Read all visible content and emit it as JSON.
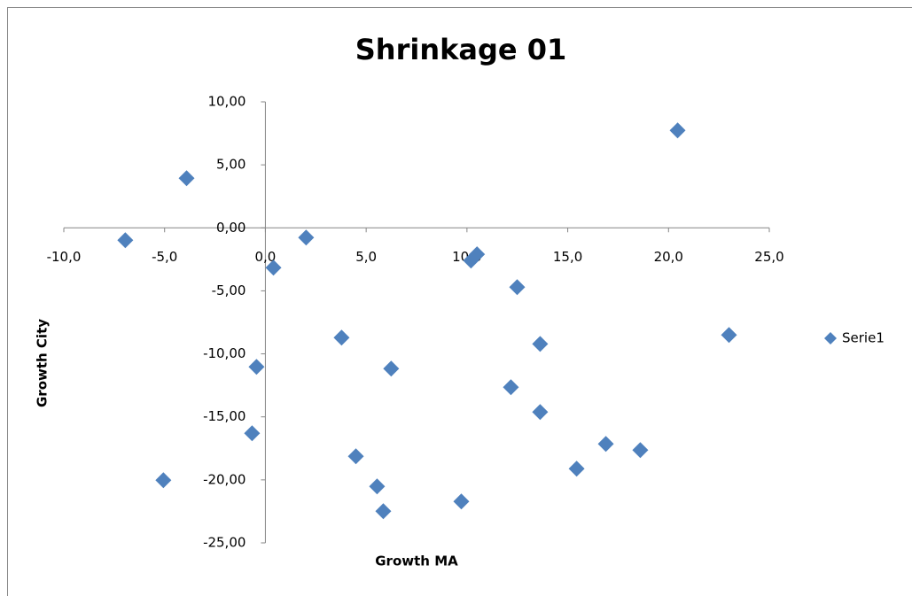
{
  "chart_data": {
    "type": "scatter",
    "title": "Shrinkage 01",
    "xlabel": "Growth MA",
    "ylabel": "Growth City",
    "xlim": [
      -10,
      25
    ],
    "ylim": [
      -25,
      10
    ],
    "xticks": [
      {
        "value": -10,
        "label": "-10,0"
      },
      {
        "value": -5,
        "label": "-5,0"
      },
      {
        "value": 0,
        "label": "0,0"
      },
      {
        "value": 5,
        "label": "5,0"
      },
      {
        "value": 10,
        "label": "10,0"
      },
      {
        "value": 15,
        "label": "15,0"
      },
      {
        "value": 20,
        "label": "20,0"
      },
      {
        "value": 25,
        "label": "25,0"
      }
    ],
    "yticks": [
      {
        "value": -25,
        "label": "-25,00"
      },
      {
        "value": -20,
        "label": "-20,00"
      },
      {
        "value": -15,
        "label": "-15,00"
      },
      {
        "value": -10,
        "label": "-10,00"
      },
      {
        "value": -5,
        "label": "-5,00"
      },
      {
        "value": 0,
        "label": "0,00"
      },
      {
        "value": 5,
        "label": "5,00"
      },
      {
        "value": 10,
        "label": "10,00"
      }
    ],
    "legend": "right",
    "series": [
      {
        "name": "Serie1",
        "color": "#4f81bd",
        "x": [
          20.45,
          -3.91,
          -6.95,
          2.02,
          0.4,
          10.2,
          10.5,
          12.49,
          3.78,
          23.0,
          13.63,
          -0.44,
          6.24,
          12.18,
          13.63,
          -0.66,
          16.89,
          18.6,
          4.49,
          15.44,
          -5.06,
          5.54,
          5.85,
          9.72
        ],
        "y": [
          7.73,
          3.94,
          -0.98,
          -0.77,
          -3.16,
          -2.6,
          -2.1,
          -4.71,
          -8.71,
          -8.5,
          -9.21,
          -11.03,
          -11.17,
          -12.65,
          -14.62,
          -16.3,
          -17.15,
          -17.64,
          -18.13,
          -19.11,
          -20.03,
          -20.52,
          -22.49,
          -21.71
        ]
      }
    ]
  }
}
